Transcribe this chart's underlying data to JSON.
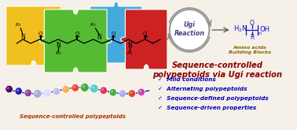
{
  "background_color": "#f5f0e8",
  "title": "Sequence-controlled\npolypeptoids via Ugi reaction",
  "title_color": "#8b0000",
  "title_fontsize": 7.2,
  "bullet_items": [
    "✓  Mild conditions",
    "✓  Alternating polypeptoids",
    "✓  Sequence-defined polypeptoids",
    "✓  Sequence-driven properties"
  ],
  "bullet_color": "#0000bb",
  "bullet_fontsize": 5.2,
  "ugi_text": "Ugi\nReaction",
  "ugi_color": "#444488",
  "amino_acid_label": "Amino acids\nBuilding Blocks",
  "amino_acid_color": "#886600",
  "bottom_label": "Sequence-controlled polypeptoids",
  "bottom_label_color": "#aa3300",
  "puzzle_colors": [
    "#f0c020",
    "#55bb33",
    "#44aadd",
    "#cc2222"
  ],
  "bead_colors": [
    "#550055",
    "#2222aa",
    "#884499",
    "#aaaadd",
    "#ddddff",
    "#bbbbee",
    "#ffaa44",
    "#ee4422",
    "#44aa44",
    "#55cccc",
    "#dd3355",
    "#44aa44",
    "#aaaaee",
    "#dd4422",
    "#cc44aa"
  ],
  "structure_color": "#1111cc",
  "arrow_color": "#888888"
}
